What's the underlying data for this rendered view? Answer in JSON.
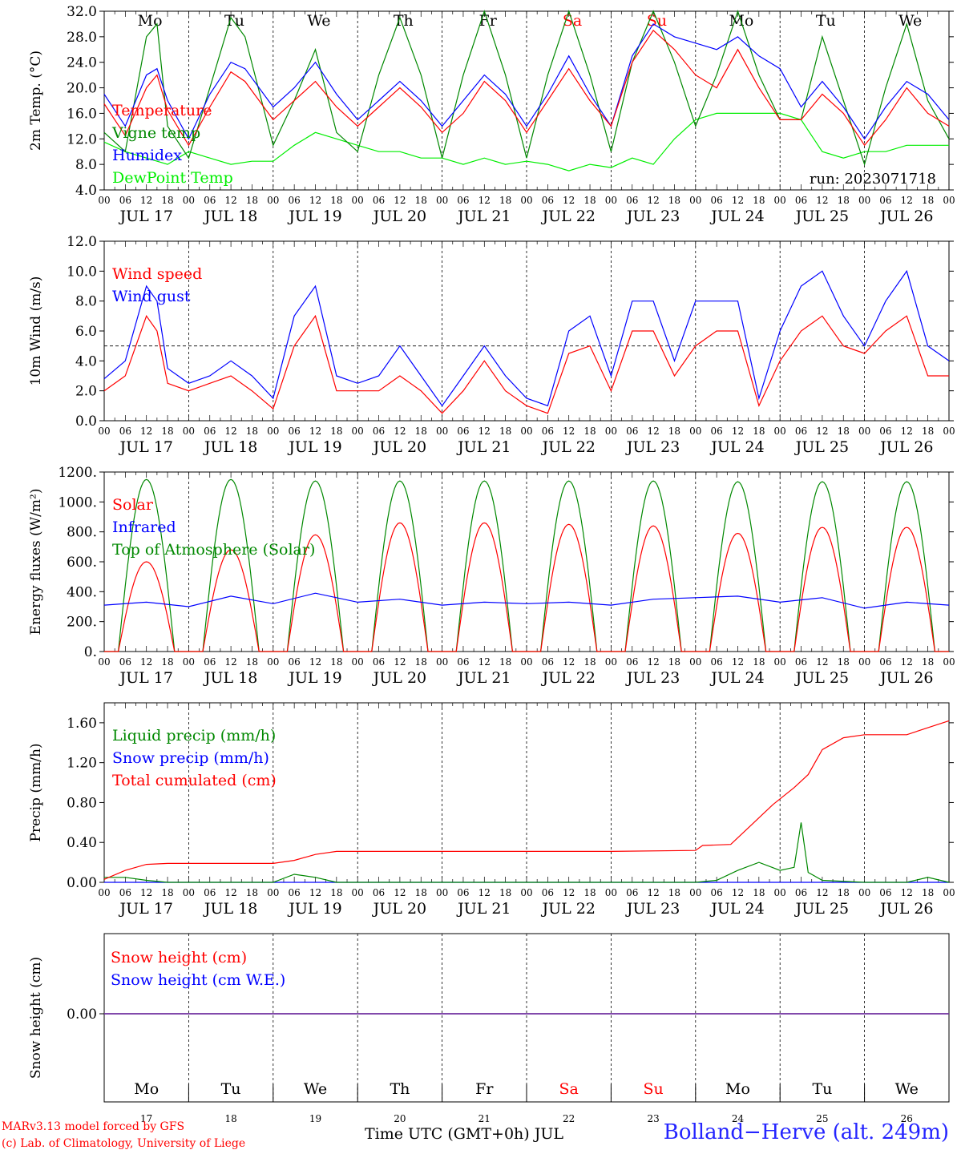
{
  "run_label": "run: 2023071718",
  "credits": [
    "MARv3.13 model forced by GFS",
    "(c) Lab. of Climatology, University of Liege"
  ],
  "x_axis_title": "Time UTC (GMT+0h) JUL",
  "station": "Bolland−Herve (alt. 249m)",
  "hour_ticks": [
    "00",
    "06",
    "12",
    "18"
  ],
  "final_tick": "00",
  "colors": {
    "red": "#ff0000",
    "blue": "#0000ff",
    "green": "#008800",
    "lime": "#00ee00",
    "purple": "#7030a0",
    "weekend": "#ff0000"
  },
  "chart_data": [
    {
      "type": "line",
      "ylabel": "2m Temp. (°C)",
      "ylim": [
        4,
        32
      ],
      "yticks": [
        "4.0",
        "8.0",
        "12.0",
        "16.0",
        "20.0",
        "24.0",
        "28.0",
        "32.0"
      ],
      "date_labels": [
        "JUL 17",
        "JUL 18",
        "JUL 19",
        "JUL 20",
        "JUL 21",
        "JUL 22",
        "JUL 23",
        "JUL 24",
        "JUL 25",
        "JUL 26"
      ],
      "weekday_labels": [
        "Mo",
        "Tu",
        "We",
        "Th",
        "Fr",
        "Sa",
        "Su",
        "Mo",
        "Tu",
        "We"
      ],
      "legend": [
        "Temperature",
        "Vigne temp",
        "Humidex",
        "DewPoint Temp"
      ],
      "x_unit": "hours since JUL 17 00 UTC",
      "series": [
        {
          "name": "Temperature",
          "color": "red",
          "x": [
            0,
            6,
            12,
            15,
            18,
            24,
            30,
            36,
            40,
            48,
            54,
            60,
            66,
            72,
            78,
            84,
            90,
            96,
            102,
            108,
            114,
            120,
            126,
            132,
            138,
            144,
            150,
            156,
            162,
            168,
            174,
            180,
            186,
            192,
            198,
            204,
            210,
            216,
            222,
            228,
            234,
            240
          ],
          "y": [
            17.5,
            12.5,
            20,
            22,
            16.5,
            11,
            17,
            22.5,
            21,
            15,
            18,
            21,
            17,
            14,
            17,
            20,
            17,
            13,
            16,
            21,
            18,
            13,
            18,
            23,
            18,
            14,
            24,
            29,
            26,
            22,
            20,
            26,
            20,
            15,
            15,
            19,
            16,
            11,
            15,
            20,
            16,
            14
          ]
        },
        {
          "name": "Vigne temp",
          "color": "green",
          "x": [
            0,
            6,
            12,
            15,
            18,
            24,
            30,
            36,
            40,
            48,
            54,
            60,
            66,
            72,
            78,
            84,
            90,
            96,
            102,
            108,
            114,
            120,
            126,
            132,
            138,
            144,
            150,
            156,
            162,
            168,
            174,
            180,
            186,
            192,
            198,
            204,
            210,
            216,
            222,
            228,
            234,
            240
          ],
          "y": [
            13,
            10,
            28,
            30,
            14,
            9,
            20,
            31,
            28,
            11,
            18,
            26,
            13,
            10,
            22,
            31,
            22,
            9,
            22,
            32,
            22,
            9,
            22,
            32,
            22,
            10,
            24,
            32,
            24,
            14,
            22,
            32,
            22,
            15,
            15,
            28,
            18,
            8,
            20,
            30,
            18,
            12
          ]
        },
        {
          "name": "Humidex",
          "color": "blue",
          "x": [
            0,
            6,
            12,
            15,
            18,
            24,
            30,
            36,
            40,
            48,
            54,
            60,
            66,
            72,
            78,
            84,
            90,
            96,
            102,
            108,
            114,
            120,
            126,
            132,
            138,
            144,
            150,
            156,
            162,
            168,
            174,
            180,
            186,
            192,
            198,
            204,
            210,
            216,
            222,
            228,
            234,
            240
          ],
          "y": [
            19,
            14,
            22,
            23,
            18,
            12,
            19,
            24,
            23,
            17,
            20,
            24,
            19,
            15,
            18,
            21,
            18,
            14,
            18,
            22,
            19,
            14,
            19,
            25,
            19,
            14,
            25,
            30,
            28,
            27,
            26,
            28,
            25,
            23,
            17,
            21,
            17,
            12,
            17,
            21,
            19,
            15
          ]
        },
        {
          "name": "DewPoint Temp",
          "color": "lime",
          "x": [
            0,
            6,
            12,
            18,
            24,
            30,
            36,
            42,
            48,
            54,
            60,
            66,
            72,
            78,
            84,
            90,
            96,
            102,
            108,
            114,
            120,
            126,
            132,
            138,
            144,
            150,
            156,
            162,
            168,
            174,
            180,
            186,
            192,
            198,
            204,
            210,
            216,
            222,
            228,
            234,
            240
          ],
          "y": [
            11.5,
            10,
            9,
            8,
            10,
            9,
            8,
            8.5,
            8.5,
            11,
            13,
            12,
            11,
            10,
            10,
            9,
            9,
            8,
            9,
            8,
            8.5,
            8,
            7,
            8,
            7.5,
            9,
            8,
            12,
            15,
            16,
            16,
            16,
            16,
            15,
            10,
            9,
            10,
            10,
            11,
            11,
            11
          ]
        }
      ]
    },
    {
      "type": "line",
      "ylabel": "10m Wind (m/s)",
      "ylim": [
        0,
        12
      ],
      "yticks": [
        "0.0",
        "2.0",
        "4.0",
        "6.0",
        "8.0",
        "10.0",
        "12.0"
      ],
      "date_labels": [
        "JUL 17",
        "JUL 18",
        "JUL 19",
        "JUL 20",
        "JUL 21",
        "JUL 22",
        "JUL 23",
        "JUL 24",
        "JUL 25",
        "JUL 26"
      ],
      "legend": [
        "Wind speed",
        "Wind gust"
      ],
      "reference_line": 5,
      "x_unit": "hours since JUL 17 00 UTC",
      "series": [
        {
          "name": "Wind speed",
          "color": "red",
          "x": [
            0,
            6,
            12,
            15,
            18,
            24,
            30,
            36,
            42,
            48,
            54,
            60,
            66,
            72,
            78,
            84,
            90,
            96,
            102,
            108,
            114,
            120,
            126,
            132,
            138,
            144,
            150,
            156,
            162,
            168,
            174,
            180,
            186,
            192,
            198,
            204,
            210,
            216,
            222,
            228,
            234,
            240
          ],
          "y": [
            2,
            3,
            7,
            6,
            2.5,
            2,
            2.5,
            3,
            2,
            0.8,
            5,
            7,
            2,
            2,
            2,
            3,
            2,
            0.5,
            2,
            4,
            2,
            1,
            0.5,
            4.5,
            5,
            2,
            6,
            6,
            3,
            5,
            6,
            6,
            1,
            4,
            6,
            7,
            5,
            4.5,
            6,
            7,
            3,
            3
          ]
        },
        {
          "name": "Wind gust",
          "color": "blue",
          "x": [
            0,
            6,
            12,
            15,
            18,
            24,
            30,
            36,
            42,
            48,
            54,
            60,
            66,
            72,
            78,
            84,
            90,
            96,
            102,
            108,
            114,
            120,
            126,
            132,
            138,
            144,
            150,
            156,
            162,
            168,
            174,
            180,
            186,
            192,
            198,
            204,
            210,
            216,
            222,
            228,
            234,
            240
          ],
          "y": [
            2.8,
            4,
            9,
            8,
            3.5,
            2.5,
            3,
            4,
            3,
            1.5,
            7,
            9,
            3,
            2.5,
            3,
            5,
            3,
            1,
            3,
            5,
            3,
            1.5,
            1,
            6,
            7,
            3,
            8,
            8,
            4,
            8,
            8,
            8,
            1.5,
            6,
            9,
            10,
            7,
            5,
            8,
            10,
            5,
            4
          ]
        }
      ]
    },
    {
      "type": "line",
      "ylabel": "Energy fluxes (W/m²)",
      "ylim": [
        0,
        1200
      ],
      "yticks": [
        "0.",
        "200.",
        "400.",
        "600.",
        "800.",
        "1000.",
        "1200."
      ],
      "date_labels": [
        "JUL 17",
        "JUL 18",
        "JUL 19",
        "JUL 20",
        "JUL 21",
        "JUL 22",
        "JUL 23",
        "JUL 24",
        "JUL 25",
        "JUL 26"
      ],
      "legend": [
        "Solar",
        "Infrared",
        "Top of Atmosphere (Solar)"
      ],
      "daylight_hours": [
        4,
        20
      ],
      "x_unit": "hours since JUL 17 00 UTC",
      "series": [
        {
          "name": "Top of Atmosphere (Solar)",
          "color": "green",
          "daily_peak": [
            1150,
            1150,
            1140,
            1140,
            1140,
            1140,
            1140,
            1135,
            1135,
            1135
          ]
        },
        {
          "name": "Solar",
          "color": "red",
          "daily_peak": [
            600,
            680,
            780,
            860,
            860,
            850,
            840,
            790,
            830,
            830
          ]
        },
        {
          "name": "Infrared",
          "color": "blue",
          "x": [
            0,
            12,
            24,
            36,
            48,
            60,
            72,
            84,
            96,
            108,
            120,
            132,
            144,
            156,
            168,
            180,
            192,
            204,
            216,
            228,
            240
          ],
          "y": [
            310,
            330,
            300,
            370,
            320,
            390,
            330,
            350,
            310,
            330,
            320,
            330,
            310,
            350,
            360,
            370,
            330,
            360,
            290,
            330,
            310
          ]
        }
      ]
    },
    {
      "type": "line",
      "ylabel": "Precip (mm/h)",
      "ylim": [
        0,
        1.8
      ],
      "yticks": [
        "0.00",
        "0.40",
        "0.80",
        "1.20",
        "1.60"
      ],
      "date_labels": [
        "JUL 17",
        "JUL 18",
        "JUL 19",
        "JUL 20",
        "JUL 21",
        "JUL 22",
        "JUL 23",
        "JUL 24",
        "JUL 25",
        "JUL 26"
      ],
      "legend": [
        "Liquid precip (mm/h)",
        "Snow precip (mm/h)",
        "Total cumulated (cm)"
      ],
      "x_unit": "hours since JUL 17 00 UTC",
      "series": [
        {
          "name": "Total cumulated (cm)",
          "color": "red",
          "x": [
            0,
            6,
            12,
            18,
            24,
            36,
            48,
            54,
            60,
            66,
            72,
            96,
            120,
            144,
            168,
            170,
            178,
            184,
            190,
            196,
            200,
            204,
            210,
            216,
            228,
            234,
            240
          ],
          "y": [
            0.03,
            0.12,
            0.18,
            0.19,
            0.19,
            0.19,
            0.19,
            0.22,
            0.28,
            0.31,
            0.31,
            0.31,
            0.31,
            0.31,
            0.32,
            0.37,
            0.38,
            0.58,
            0.78,
            0.95,
            1.08,
            1.33,
            1.45,
            1.48,
            1.48,
            1.55,
            1.62
          ]
        },
        {
          "name": "Liquid precip (mm/h)",
          "color": "green",
          "x": [
            0,
            6,
            12,
            18,
            24,
            48,
            54,
            60,
            66,
            72,
            168,
            174,
            180,
            186,
            192,
            196,
            198,
            200,
            204,
            216,
            228,
            234,
            240
          ],
          "y": [
            0.05,
            0.05,
            0.02,
            0,
            0,
            0,
            0.08,
            0.05,
            0,
            0,
            0,
            0.02,
            0.12,
            0.2,
            0.12,
            0.15,
            0.6,
            0.1,
            0.02,
            0,
            0,
            0.05,
            0
          ]
        },
        {
          "name": "Snow precip (mm/h)",
          "color": "blue",
          "x": [
            0,
            240
          ],
          "y": [
            0,
            0
          ]
        }
      ]
    },
    {
      "type": "line",
      "ylabel": "Snow height (cm)",
      "ylim": [
        -1,
        1
      ],
      "yticks": [
        "0.00"
      ],
      "weekday_labels": [
        "Mo",
        "Tu",
        "We",
        "Th",
        "Fr",
        "Sa",
        "Su",
        "Mo",
        "Tu",
        "We"
      ],
      "day_numbers": [
        "17",
        "18",
        "19",
        "20",
        "21",
        "22",
        "23",
        "24",
        "25",
        "26"
      ],
      "legend": [
        "Snow height (cm)",
        "Snow height (cm W.E.)"
      ],
      "x_unit": "hours since JUL 17 00 UTC",
      "series": [
        {
          "name": "Snow height (cm)",
          "color": "red",
          "x": [
            0,
            240
          ],
          "y": [
            0,
            0
          ]
        },
        {
          "name": "Snow height (cm W.E.)",
          "color": "blue",
          "x": [
            0,
            240
          ],
          "y": [
            0,
            0
          ]
        }
      ]
    }
  ]
}
